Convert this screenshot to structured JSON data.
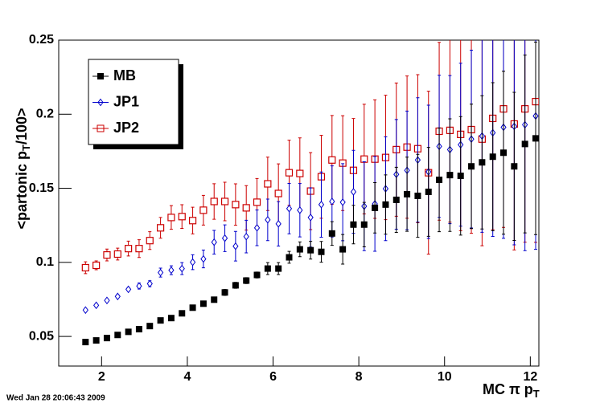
{
  "chart_data": {
    "type": "scatter",
    "xlabel": {
      "main": "MC π p",
      "sub": "T"
    },
    "ylabel": {
      "main": "<partonic p",
      "sub": "T",
      "post": "/100>"
    },
    "timestamp": "Wed Jan 28 20:06:43 2009",
    "xlim": [
      1,
      12.2
    ],
    "ylim": [
      0.03,
      0.25
    ],
    "xticks": [
      2,
      4,
      6,
      8,
      10,
      12
    ],
    "yticks": [
      0.05,
      0.1,
      0.15,
      0.2,
      0.25
    ],
    "legend": "top-left",
    "x": [
      1.625,
      1.875,
      2.125,
      2.375,
      2.625,
      2.875,
      3.125,
      3.375,
      3.625,
      3.875,
      4.125,
      4.375,
      4.625,
      4.875,
      5.125,
      5.375,
      5.625,
      5.875,
      6.125,
      6.375,
      6.625,
      6.875,
      7.125,
      7.375,
      7.625,
      7.875,
      8.125,
      8.375,
      8.625,
      8.875,
      9.125,
      9.375,
      9.625,
      9.875,
      10.125,
      10.375,
      10.625,
      10.875,
      11.125,
      11.375,
      11.625,
      11.875,
      12.125
    ],
    "series": [
      {
        "name": "MB",
        "color": "#000000",
        "marker": "filled-square",
        "values": [
          0.0462,
          0.0473,
          0.0489,
          0.051,
          0.0531,
          0.0549,
          0.057,
          0.0608,
          0.0624,
          0.0656,
          0.0694,
          0.0721,
          0.0748,
          0.0797,
          0.0845,
          0.0877,
          0.0915,
          0.0958,
          0.0958,
          0.1034,
          0.1088,
          0.1082,
          0.1071,
          0.1195,
          0.1088,
          0.1255,
          0.1255,
          0.1368,
          0.139,
          0.1422,
          0.146,
          0.1449,
          0.1476,
          0.1557,
          0.1589,
          0.1584,
          0.1648,
          0.1675,
          0.1713,
          0.174,
          0.1648,
          0.1799,
          0.1837
        ],
        "errors": [
          0.001,
          0.001,
          0.001,
          0.001,
          0.001,
          0.001,
          0.001,
          0.001,
          0.001,
          0.001,
          0.001,
          0.001,
          0.001,
          0.002,
          0.002,
          0.002,
          0.002,
          0.004,
          0.004,
          0.004,
          0.005,
          0.006,
          0.007,
          0.008,
          0.01,
          0.013,
          0.015,
          0.017,
          0.02,
          0.022,
          0.025,
          0.028,
          0.03,
          0.035,
          0.038,
          0.04,
          0.042,
          0.045,
          0.05,
          0.055,
          0.05,
          0.06,
          0.065
        ]
      },
      {
        "name": "JP1",
        "color": "#0000cc",
        "marker": "open-diamond",
        "values": [
          0.0678,
          0.071,
          0.0743,
          0.077,
          0.0818,
          0.084,
          0.0856,
          0.0931,
          0.0947,
          0.0958,
          0.1001,
          0.1023,
          0.1136,
          0.1163,
          0.1109,
          0.1174,
          0.1233,
          0.1287,
          0.126,
          0.1363,
          0.1352,
          0.1303,
          0.139,
          0.1411,
          0.1406,
          0.1476,
          0.1379,
          0.1395,
          0.1497,
          0.1594,
          0.1621,
          0.1691,
          0.1611,
          0.1783,
          0.1761,
          0.1794,
          0.1832,
          0.1853,
          0.1875,
          0.1912,
          0.1918,
          0.1929,
          0.1988
        ],
        "errors": [
          0.001,
          0.001,
          0.001,
          0.001,
          0.001,
          0.002,
          0.002,
          0.003,
          0.003,
          0.004,
          0.005,
          0.006,
          0.008,
          0.009,
          0.01,
          0.011,
          0.012,
          0.014,
          0.015,
          0.017,
          0.018,
          0.02,
          0.022,
          0.024,
          0.026,
          0.028,
          0.03,
          0.032,
          0.035,
          0.037,
          0.04,
          0.042,
          0.045,
          0.048,
          0.05,
          0.055,
          0.06,
          0.065,
          0.07,
          0.075,
          0.08,
          0.085,
          0.09
        ]
      },
      {
        "name": "JP2",
        "color": "#cc0000",
        "marker": "open-square",
        "values": [
          0.0964,
          0.098,
          0.105,
          0.1056,
          0.1093,
          0.1093,
          0.1147,
          0.1233,
          0.1303,
          0.1309,
          0.1282,
          0.1352,
          0.1411,
          0.1411,
          0.139,
          0.1368,
          0.1406,
          0.153,
          0.1465,
          0.1605,
          0.16,
          0.1481,
          0.1578,
          0.1691,
          0.167,
          0.1621,
          0.1697,
          0.1697,
          0.1708,
          0.1761,
          0.1778,
          0.1767,
          0.1605,
          0.1885,
          0.1891,
          0.1864,
          0.1896,
          0.1832,
          0.1972,
          0.2036,
          0.1934,
          0.2036,
          0.2085
        ],
        "errors": [
          0.004,
          0.003,
          0.004,
          0.004,
          0.005,
          0.006,
          0.006,
          0.007,
          0.008,
          0.008,
          0.009,
          0.01,
          0.012,
          0.013,
          0.014,
          0.015,
          0.016,
          0.018,
          0.02,
          0.022,
          0.024,
          0.026,
          0.028,
          0.03,
          0.032,
          0.035,
          0.037,
          0.04,
          0.042,
          0.045,
          0.048,
          0.05,
          0.055,
          0.06,
          0.062,
          0.065,
          0.07,
          0.072,
          0.075,
          0.08,
          0.085,
          0.09,
          0.095
        ]
      }
    ]
  }
}
